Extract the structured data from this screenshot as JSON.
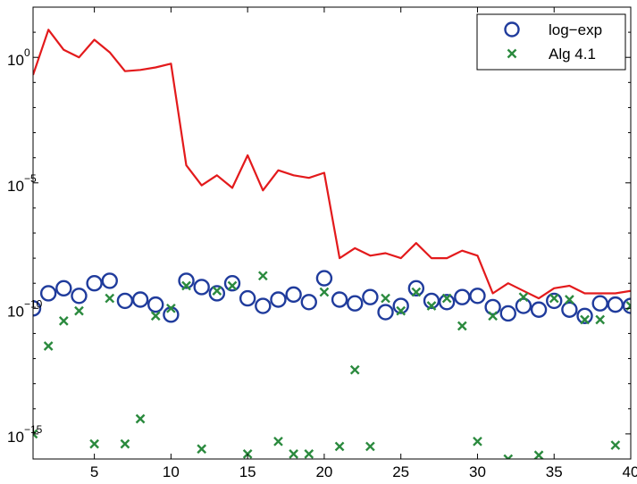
{
  "chart_data": {
    "type": "scatter",
    "title": "",
    "xlabel": "",
    "ylabel": "",
    "xlim": [
      1,
      40
    ],
    "ylim": [
      -16,
      2
    ],
    "yscale": "log",
    "grid": false,
    "legend_position": "top-right",
    "x_ticks": [
      "5",
      "10",
      "15",
      "20",
      "25",
      "30",
      "35",
      "40"
    ],
    "y_ticks": [
      {
        "base": "10",
        "exp": "0",
        "value": 0
      },
      {
        "base": "10",
        "exp": "−5",
        "value": -5
      },
      {
        "base": "10",
        "exp": "−10",
        "value": -10
      },
      {
        "base": "10",
        "exp": "−15",
        "value": -15
      }
    ],
    "series": [
      {
        "name": "",
        "marker": "line",
        "color": "#e31a1c",
        "x": [
          1,
          2,
          3,
          4,
          5,
          6,
          7,
          8,
          9,
          10,
          11,
          12,
          13,
          14,
          15,
          16,
          17,
          18,
          19,
          20,
          21,
          22,
          23,
          24,
          25,
          26,
          27,
          28,
          29,
          30,
          31,
          32,
          33,
          34,
          35,
          36,
          37,
          38,
          39,
          40
        ],
        "log10_y": [
          -0.7,
          1.1,
          0.3,
          0.0,
          0.7,
          0.2,
          -0.55,
          -0.5,
          -0.4,
          -0.25,
          -4.3,
          -5.1,
          -4.7,
          -5.2,
          -3.9,
          -5.3,
          -4.5,
          -4.7,
          -4.8,
          -4.6,
          -8.0,
          -7.6,
          -7.9,
          -7.8,
          -8.0,
          -7.4,
          -8.0,
          -8.0,
          -7.7,
          -7.9,
          -9.4,
          -9.0,
          -9.3,
          -9.6,
          -9.2,
          -9.1,
          -9.4,
          -9.4,
          -9.4,
          -9.3
        ]
      },
      {
        "name": "log−exp",
        "marker": "circle",
        "color": "#1f3b9c",
        "x": [
          1,
          2,
          3,
          4,
          5,
          6,
          7,
          8,
          9,
          10,
          11,
          12,
          13,
          14,
          15,
          16,
          17,
          18,
          19,
          20,
          21,
          22,
          23,
          24,
          25,
          26,
          27,
          28,
          29,
          30,
          31,
          32,
          33,
          34,
          35,
          36,
          37,
          38,
          39,
          40
        ],
        "log10_y": [
          -10.0,
          -9.4,
          -9.2,
          -9.5,
          -9.0,
          -8.9,
          -9.7,
          -9.65,
          -9.85,
          -10.25,
          -8.9,
          -9.15,
          -9.4,
          -9.0,
          -9.6,
          -9.9,
          -9.65,
          -9.45,
          -9.75,
          -8.8,
          -9.65,
          -9.8,
          -9.55,
          -10.15,
          -9.9,
          -9.2,
          -9.7,
          -9.75,
          -9.55,
          -9.5,
          -9.95,
          -10.2,
          -9.9,
          -10.05,
          -9.7,
          -10.05,
          -10.3,
          -9.8,
          -9.85,
          -9.9
        ]
      },
      {
        "name": "Alg 4.1",
        "marker": "x",
        "color": "#2b8a3e",
        "x": [
          1,
          2,
          3,
          4,
          5,
          6,
          7,
          8,
          9,
          10,
          11,
          12,
          13,
          14,
          15,
          16,
          17,
          18,
          19,
          20,
          21,
          22,
          23,
          24,
          25,
          26,
          27,
          28,
          29,
          30,
          31,
          32,
          33,
          34,
          35,
          36,
          37,
          38,
          39,
          40
        ],
        "log10_y": [
          -15.0,
          -11.5,
          -10.5,
          -10.1,
          -15.4,
          -9.6,
          -15.4,
          -14.4,
          -10.3,
          -10.0,
          -9.1,
          -15.6,
          -9.3,
          -9.1,
          -15.8,
          -8.7,
          -15.3,
          -15.8,
          -15.8,
          -9.35,
          -15.5,
          -12.45,
          -15.5,
          -9.6,
          -10.1,
          -9.35,
          -9.9,
          -9.6,
          -10.7,
          -15.3,
          -10.3,
          -16.0,
          -9.55,
          -15.85,
          -9.6,
          -9.65,
          -10.45,
          -10.45,
          -15.45,
          -9.9
        ]
      }
    ]
  }
}
